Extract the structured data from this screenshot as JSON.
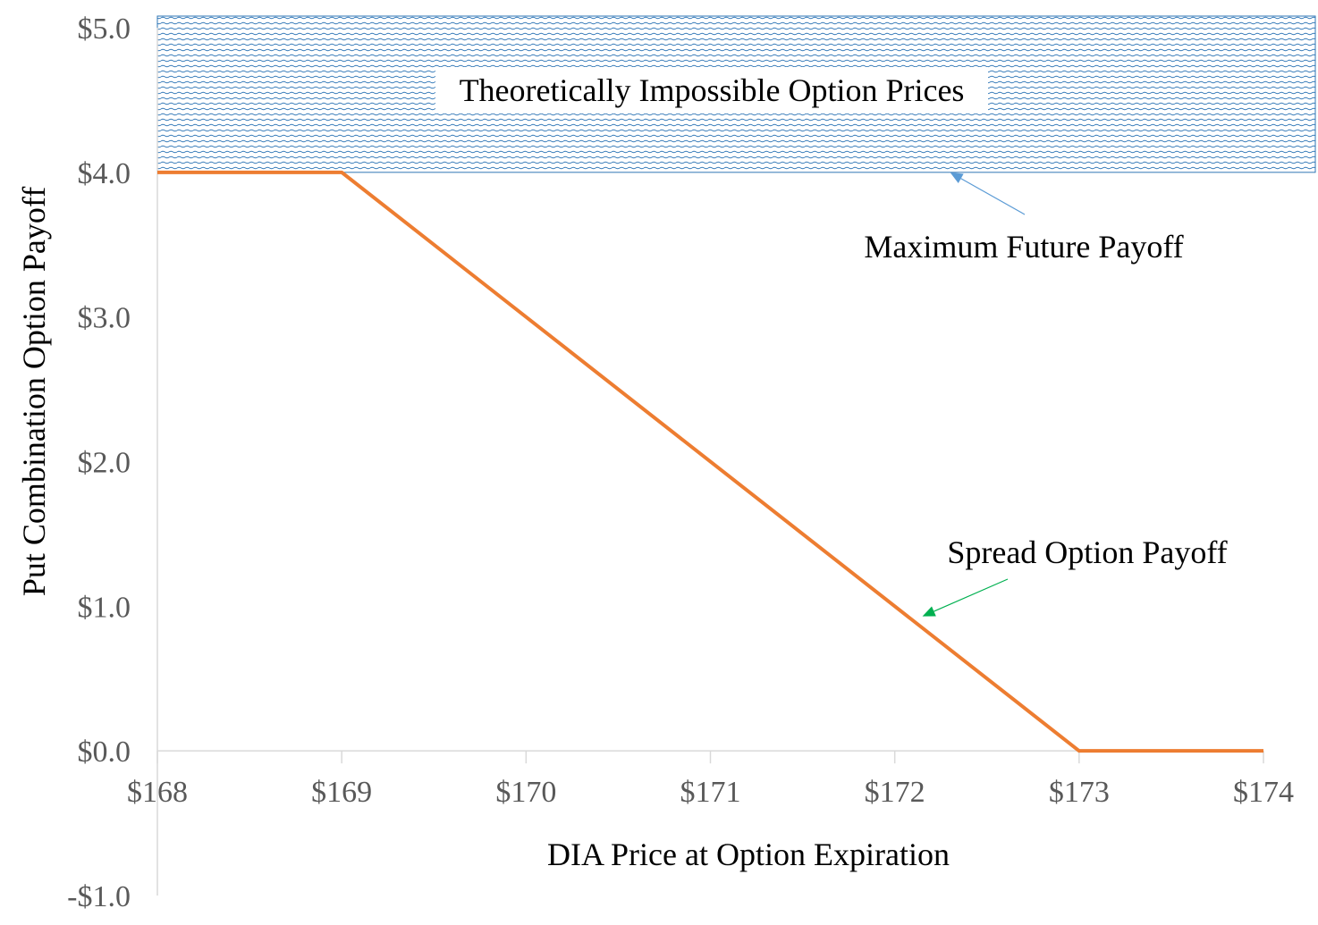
{
  "chart_data": {
    "type": "line",
    "title": "",
    "xlabel": "DIA Price at Option Expiration",
    "ylabel": "Put Combination Option Payoff",
    "xlim": [
      168,
      174
    ],
    "ylim": [
      -1,
      5
    ],
    "x_ticks": [
      168,
      169,
      170,
      171,
      172,
      173,
      174
    ],
    "x_tick_labels": [
      "$168",
      "$169",
      "$170",
      "$171",
      "$172",
      "$173",
      "$174"
    ],
    "y_ticks": [
      5,
      4,
      3,
      2,
      1,
      0,
      -1
    ],
    "y_tick_labels": [
      "$5.0",
      "$4.0",
      "$3.0",
      "$2.0",
      "$1.0",
      "$0.0",
      "-$1.0"
    ],
    "series": [
      {
        "color": "#ED7D31",
        "x": [
          168,
          169,
          173,
          174
        ],
        "y": [
          4,
          4,
          0,
          0
        ]
      }
    ],
    "region": {
      "label": "Theoretically Impossible Option Prices",
      "x_range": [
        168,
        174
      ],
      "y_range": [
        4,
        5
      ],
      "color": "#2E75B6"
    },
    "annotations": [
      {
        "text": "Maximum Future Payoff",
        "arrow_color": "#5B9BD5",
        "points_to": [
          172.3,
          4.0
        ]
      },
      {
        "text": "Spread Option Payoff",
        "arrow_color": "#00B050",
        "points_to": [
          172.15,
          0.93
        ]
      }
    ],
    "grid": false,
    "legend": "none"
  }
}
